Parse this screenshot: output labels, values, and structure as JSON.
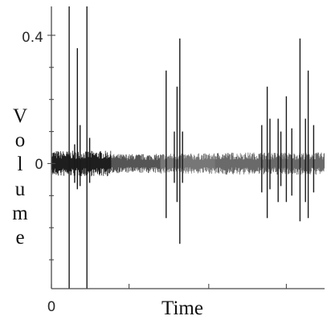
{
  "chart_data": {
    "type": "line",
    "title": "",
    "xlabel": "Time",
    "ylabel": "Volume",
    "ylabel_letters": [
      "V",
      "o",
      "l",
      "u",
      "m",
      "e"
    ],
    "x_tick_labels": [
      "0"
    ],
    "y_tick_labels": [
      "0",
      "0.4"
    ],
    "xlim": [
      0,
      1
    ],
    "ylim": [
      -0.39,
      0.49
    ],
    "grid": false,
    "legend": "none",
    "series": [
      {
        "line_color": "#1a1a1a",
        "spikes": [
          {
            "x": 0.065,
            "max": 0.49,
            "min": -0.39
          },
          {
            "x": 0.085,
            "max": 0.06,
            "min": -0.06
          },
          {
            "x": 0.095,
            "max": 0.36,
            "min": -0.08
          },
          {
            "x": 0.105,
            "max": 0.12,
            "min": -0.07
          },
          {
            "x": 0.13,
            "max": 0.49,
            "min": -0.39
          },
          {
            "x": 0.14,
            "max": 0.08,
            "min": -0.06
          },
          {
            "x": 0.42,
            "max": 0.29,
            "min": -0.17
          },
          {
            "x": 0.45,
            "max": 0.1,
            "min": -0.06
          },
          {
            "x": 0.46,
            "max": 0.24,
            "min": -0.12
          },
          {
            "x": 0.47,
            "max": 0.39,
            "min": -0.25
          },
          {
            "x": 0.48,
            "max": 0.1,
            "min": -0.06
          },
          {
            "x": 0.77,
            "max": 0.12,
            "min": -0.09
          },
          {
            "x": 0.79,
            "max": 0.24,
            "min": -0.17
          },
          {
            "x": 0.8,
            "max": 0.14,
            "min": -0.08
          },
          {
            "x": 0.83,
            "max": 0.14,
            "min": -0.12
          },
          {
            "x": 0.84,
            "max": 0.1,
            "min": -0.07
          },
          {
            "x": 0.86,
            "max": 0.21,
            "min": -0.12
          },
          {
            "x": 0.88,
            "max": 0.11,
            "min": -0.1
          },
          {
            "x": 0.91,
            "max": 0.39,
            "min": -0.18
          },
          {
            "x": 0.93,
            "max": 0.14,
            "min": -0.12
          },
          {
            "x": 0.94,
            "max": 0.29,
            "min": -0.17
          },
          {
            "x": 0.96,
            "max": 0.12,
            "min": -0.09
          }
        ],
        "baseline_segments": [
          {
            "x_start": 0.0,
            "x_end": 0.22,
            "amplitude": 0.04,
            "color": "#1e1e1e"
          },
          {
            "x_start": 0.22,
            "x_end": 0.4,
            "amplitude": 0.03,
            "color": "#555555"
          },
          {
            "x_start": 0.4,
            "x_end": 0.6,
            "amplitude": 0.032,
            "color": "#777777"
          },
          {
            "x_start": 0.6,
            "x_end": 1.0,
            "amplitude": 0.035,
            "color": "#6a6a6a"
          }
        ]
      }
    ]
  }
}
